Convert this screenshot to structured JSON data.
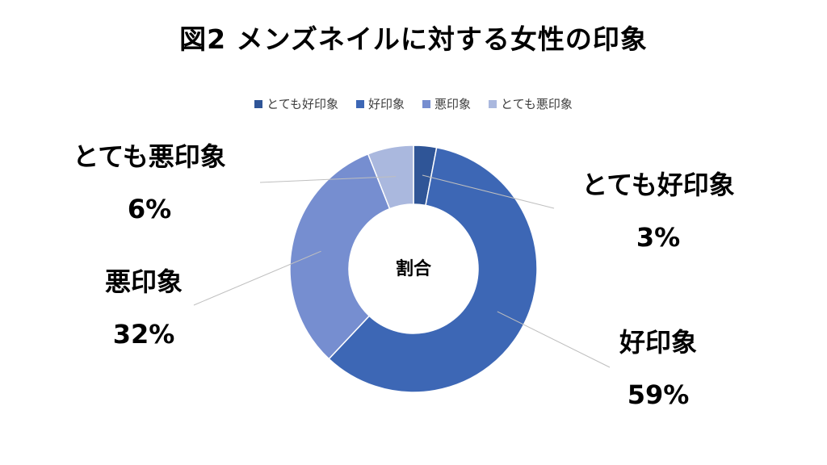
{
  "chart_data": {
    "type": "pie",
    "subtype": "donut",
    "title": "図2 メンズネイルに対する女性の印象",
    "center_label": "割合",
    "categories": [
      "とても好印象",
      "好印象",
      "悪印象",
      "とても悪印象"
    ],
    "values": [
      3,
      59,
      32,
      6
    ],
    "value_labels": [
      "3%",
      "59%",
      "32%",
      "6%"
    ],
    "colors": [
      "#2F5597",
      "#3D67B5",
      "#768ED0",
      "#AAB8DE"
    ],
    "legend_position": "top"
  }
}
